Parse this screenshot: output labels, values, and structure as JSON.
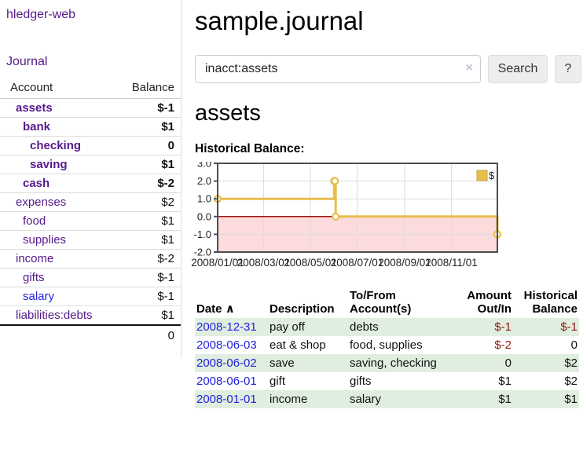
{
  "sidebar": {
    "brand": "hledger-web",
    "nav": {
      "journal": "Journal"
    },
    "table": {
      "account_header": "Account",
      "balance_header": "Balance",
      "rows": [
        {
          "name": "assets",
          "level": 1,
          "bold": true,
          "balance": "$-1",
          "balance_class": "neg-strong"
        },
        {
          "name": "bank",
          "level": 2,
          "bold": true,
          "balance": "$1",
          "balance_class": ""
        },
        {
          "name": "checking",
          "level": 3,
          "bold": true,
          "balance": "0",
          "balance_class": ""
        },
        {
          "name": "saving",
          "level": 3,
          "bold": true,
          "balance": "$1",
          "balance_class": ""
        },
        {
          "name": "cash",
          "level": 2,
          "bold": true,
          "balance": "$-2",
          "balance_class": "neg-strong"
        },
        {
          "name": "expenses",
          "level": 1,
          "bold": false,
          "balance": "$2",
          "balance_class": ""
        },
        {
          "name": "food",
          "level": 2,
          "bold": false,
          "balance": "$1",
          "balance_class": ""
        },
        {
          "name": "supplies",
          "level": 2,
          "bold": false,
          "balance": "$1",
          "balance_class": ""
        },
        {
          "name": "income",
          "level": 1,
          "bold": false,
          "balance": "$-2",
          "balance_class": "neg-muted"
        },
        {
          "name": "gifts",
          "level": 2,
          "bold": false,
          "balance": "$-1",
          "balance_class": "neg-muted"
        },
        {
          "name": "salary",
          "level": 2,
          "bold": false,
          "balance": "$-1",
          "balance_class": "neg-muted",
          "link_color": "blue"
        },
        {
          "name": "liabilities:debts",
          "level": 1,
          "bold": false,
          "balance": "$1",
          "balance_class": ""
        }
      ],
      "total": "0"
    }
  },
  "main": {
    "title": "sample.journal",
    "search": {
      "value": "inacct:assets",
      "clear_icon": "×",
      "button": "Search",
      "help": "?"
    },
    "heading": "assets"
  },
  "chart_data": {
    "type": "line",
    "title": "Historical Balance:",
    "step": true,
    "series": [
      {
        "name": "$",
        "points": [
          {
            "x": "2008/01/01",
            "y": 1
          },
          {
            "x": "2008/06/01",
            "y": 2
          },
          {
            "x": "2008/06/02",
            "y": 2
          },
          {
            "x": "2008/06/03",
            "y": 0
          },
          {
            "x": "2008/12/31",
            "y": -1
          }
        ]
      }
    ],
    "x_range": [
      "2008/01/01",
      "2008/12/31"
    ],
    "x_ticks": [
      "2008/01/01",
      "2008/03/01",
      "2008/05/01",
      "2008/07/01",
      "2008/09/01",
      "2008/11/01"
    ],
    "y_ticks": [
      3,
      2,
      1,
      0,
      -1,
      -2
    ],
    "ylim": [
      -2,
      3
    ],
    "grid": true,
    "legend": {
      "label": "$",
      "position": "top-right"
    },
    "colors": {
      "line": "#e8be4d",
      "marker_fill": "#ffffff",
      "negative_region": "#fbdbdb",
      "zero_line": "#a01010",
      "grid": "#dddddd",
      "border": "#4d4d4d",
      "axis_tick": "#46516b",
      "legend_square_border": "#c9a53d"
    }
  },
  "register": {
    "columns": [
      "Date",
      "Description",
      "To/From Account(s)",
      "Amount Out/In",
      "Historical Balance"
    ],
    "sort_icon": "∧",
    "rows": [
      {
        "date": "2008-12-31",
        "description": "pay off",
        "accounts": "debts",
        "amount": "$-1",
        "amount_neg": true,
        "historical": "$-1",
        "historical_neg": true
      },
      {
        "date": "2008-06-03",
        "description": "eat & shop",
        "accounts": "food, supplies",
        "amount": "$-2",
        "amount_neg": true,
        "historical": "0",
        "historical_neg": false
      },
      {
        "date": "2008-06-02",
        "description": "save",
        "accounts": "saving, checking",
        "amount": "0",
        "amount_neg": false,
        "historical": "$2",
        "historical_neg": false
      },
      {
        "date": "2008-06-01",
        "description": "gift",
        "accounts": "gifts",
        "amount": "$1",
        "amount_neg": false,
        "historical": "$2",
        "historical_neg": false
      },
      {
        "date": "2008-01-01",
        "description": "income",
        "accounts": "salary",
        "amount": "$1",
        "amount_neg": false,
        "historical": "$1",
        "historical_neg": false
      }
    ]
  }
}
